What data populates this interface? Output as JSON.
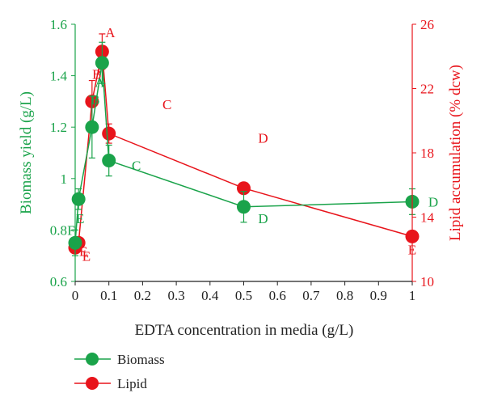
{
  "chart_data": {
    "type": "line",
    "xlabel": "EDTA concentration in media (g/L)",
    "ylabel_left": "Biomass yield (g/L)",
    "ylabel_right": "Lipid accumulation (% dcw)",
    "xlim": [
      0,
      1
    ],
    "ylim_left": [
      0.6,
      1.6
    ],
    "ylim_right": [
      10,
      26
    ],
    "x_ticks": [
      "0",
      "0.1",
      "0.2",
      "0.3",
      "0.4",
      "0.5",
      "0.6",
      "0.7",
      "0.8",
      "0.9",
      "1"
    ],
    "y_left_ticks": [
      "0.6",
      "0.8",
      "1",
      "1.2",
      "1.4",
      "1.6"
    ],
    "y_right_ticks": [
      "10",
      "14",
      "18",
      "22",
      "26"
    ],
    "grid": false,
    "legend_position": "bottom-left",
    "colors": {
      "biomass": "#1aa34a",
      "lipid": "#e8141b"
    },
    "series": [
      {
        "name": "Biomass",
        "axis": "left",
        "x": [
          0,
          0.01,
          0.05,
          0.08,
          0.1,
          0.5,
          1
        ],
        "y": [
          0.75,
          0.92,
          1.2,
          1.45,
          1.07,
          0.89,
          0.91
        ],
        "err": [
          0.05,
          0.04,
          0.12,
          0.08,
          0.06,
          0.06,
          0.05
        ],
        "letters": [
          "F",
          "E",
          "B",
          "A",
          "C",
          "D",
          "D"
        ]
      },
      {
        "name": "Lipid",
        "axis": "right",
        "x": [
          0,
          0.01,
          0.05,
          0.08,
          0.1,
          0.5,
          1
        ],
        "y": [
          12.1,
          12.4,
          21.2,
          24.3,
          19.2,
          15.8,
          12.8
        ],
        "err": [
          0.3,
          0.3,
          1.3,
          1.1,
          0.6,
          0.3,
          0.3
        ],
        "letters": [
          "E",
          "E",
          "B",
          "A",
          "C",
          "D",
          "E"
        ]
      }
    ]
  }
}
